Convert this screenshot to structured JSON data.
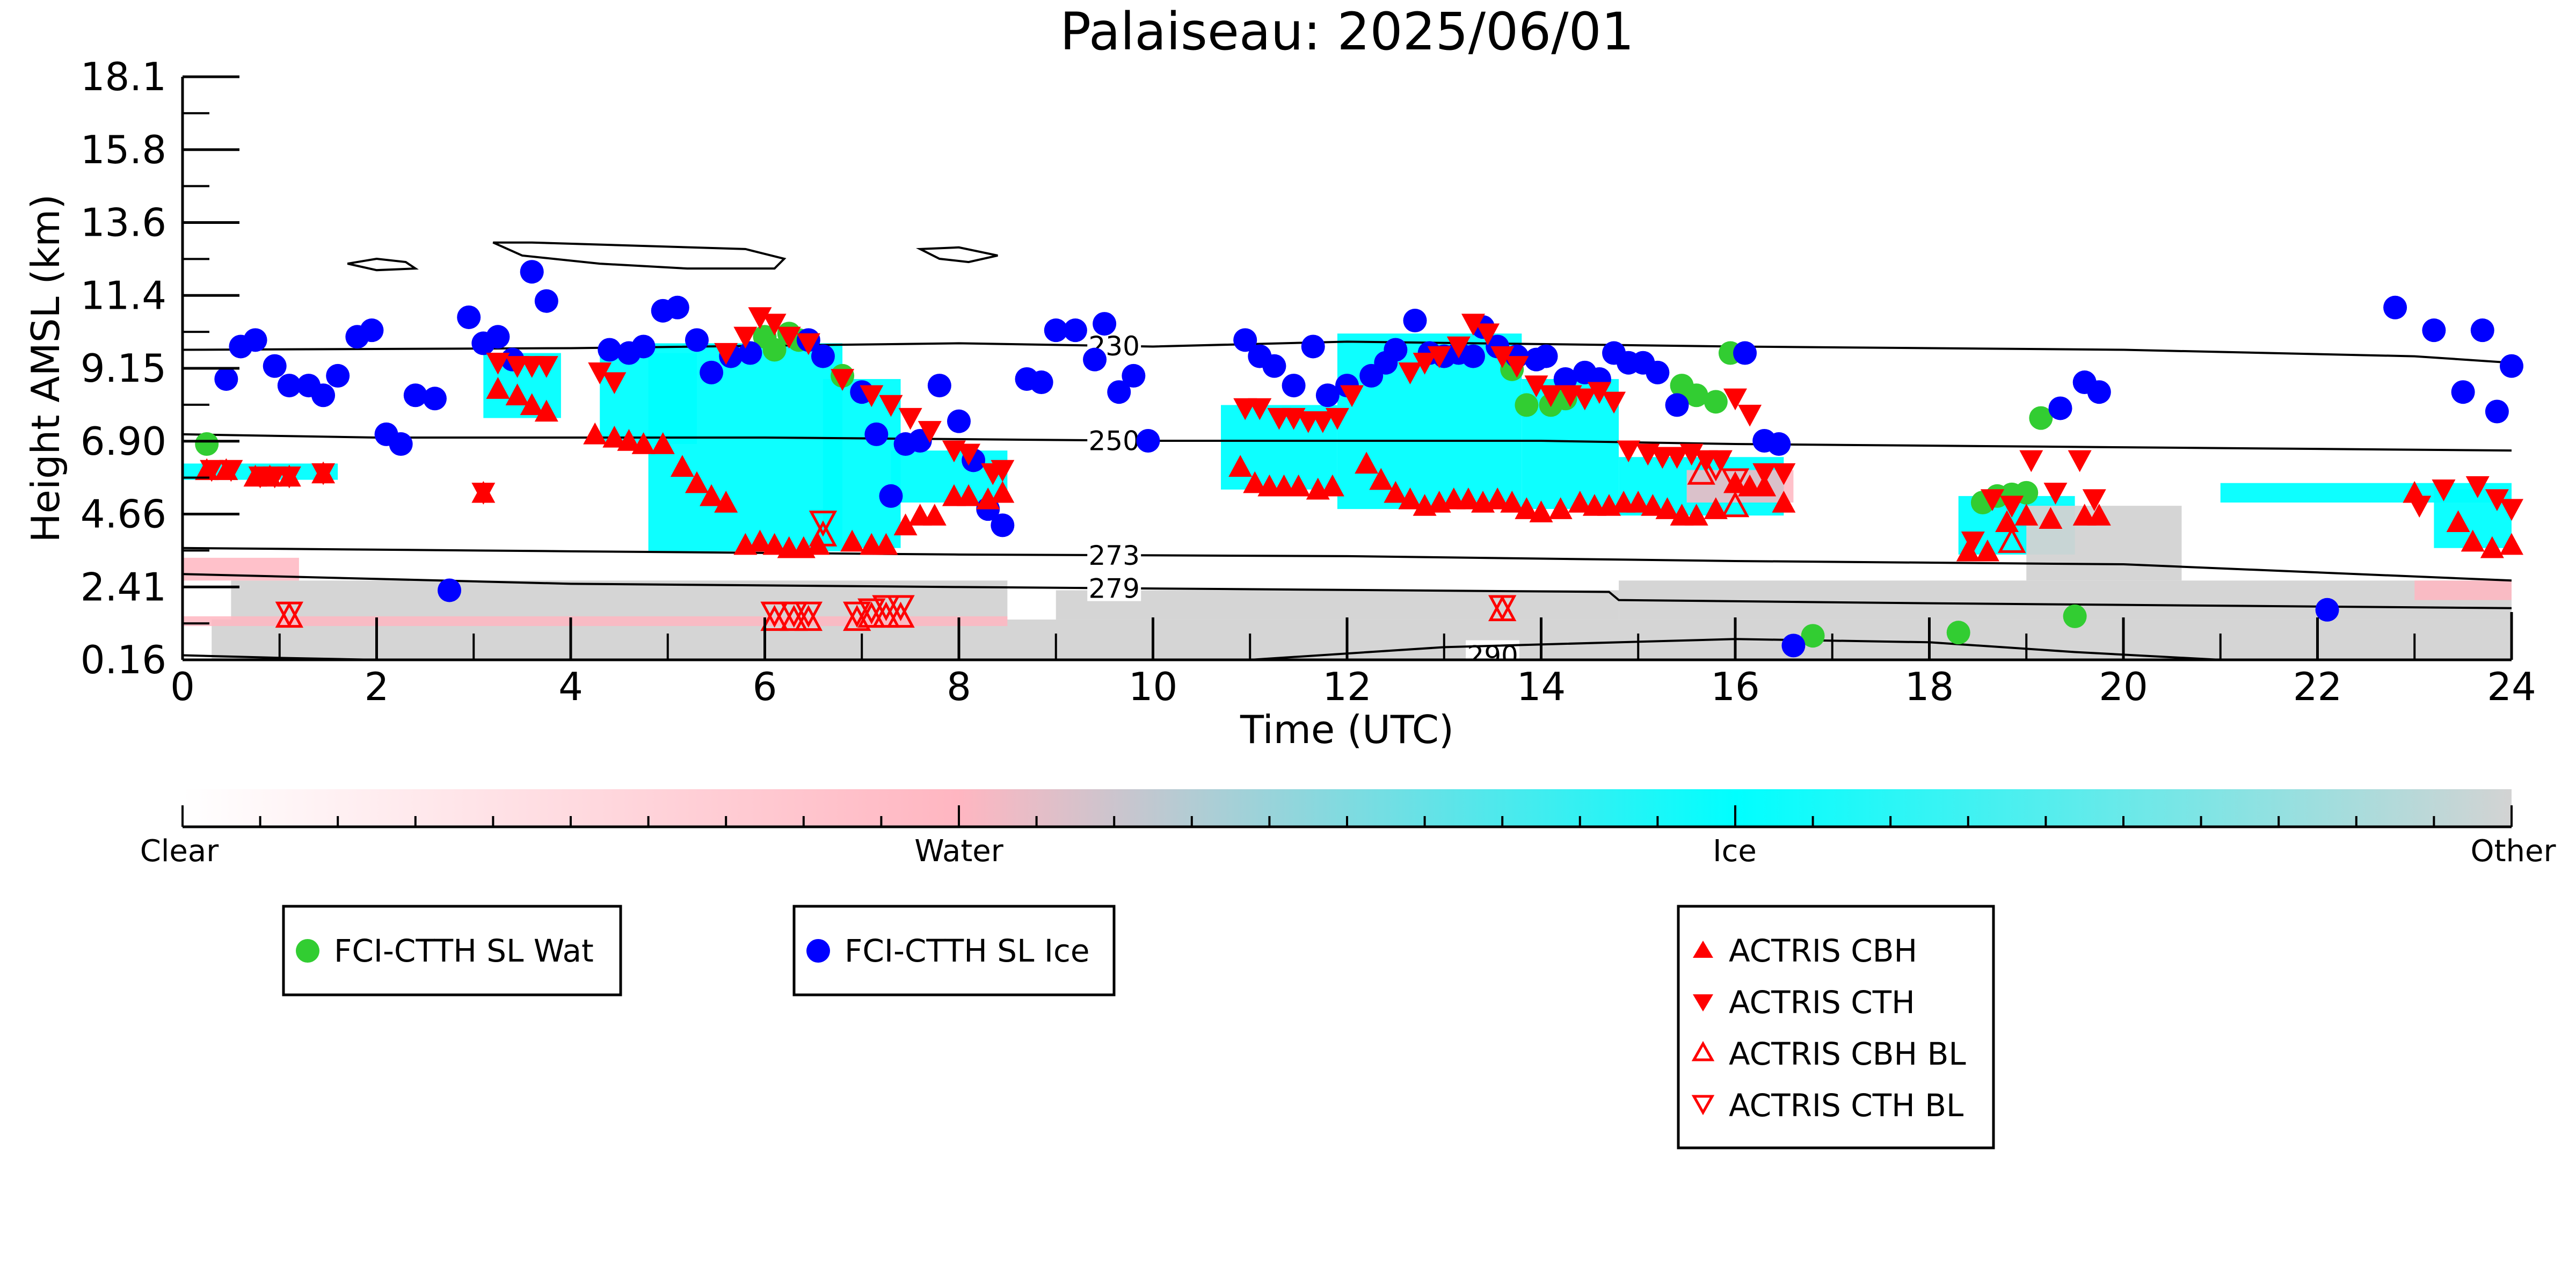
{
  "chart_data": {
    "type": "scatter",
    "title": "Palaiseau: 2025/06/01",
    "xlabel": "Time (UTC)",
    "ylabel": "Height AMSL (km)",
    "xlim": [
      0,
      24
    ],
    "ylim": [
      0.16,
      18.1
    ],
    "x_ticks": [
      "0",
      "2",
      "4",
      "6",
      "8",
      "10",
      "12",
      "14",
      "16",
      "18",
      "20",
      "22",
      "24"
    ],
    "y_ticks": [
      "0.16",
      "2.41",
      "4.66",
      "6.90",
      "9.15",
      "11.4",
      "13.6",
      "15.8",
      "18.1"
    ],
    "grid": false,
    "colors": {
      "clear": "#ffffff",
      "water": "#ffb6c1",
      "ice": "#00ffff",
      "other": "#d3d3d3",
      "sl_wat": "#32cd32",
      "sl_ice": "#0000ff",
      "actris": "#ff0000"
    },
    "colorbar": {
      "labels": [
        "Clear",
        "Water",
        "Ice",
        "Other"
      ]
    },
    "cloud_phase_regions": [
      {
        "phase": "ice",
        "x0": 3.1,
        "x1": 3.9,
        "y0": 7.6,
        "y1": 9.6
      },
      {
        "phase": "ice",
        "x0": 4.3,
        "x1": 5.3,
        "y0": 6.8,
        "y1": 9.6
      },
      {
        "phase": "ice",
        "x0": 4.8,
        "x1": 6.8,
        "y0": 3.5,
        "y1": 9.9
      },
      {
        "phase": "ice",
        "x0": 6.6,
        "x1": 7.4,
        "y0": 3.6,
        "y1": 8.8
      },
      {
        "phase": "ice",
        "x0": 7.3,
        "x1": 8.5,
        "y0": 5.0,
        "y1": 6.6
      },
      {
        "phase": "ice",
        "x0": 10.7,
        "x1": 11.9,
        "y0": 5.4,
        "y1": 8.0
      },
      {
        "phase": "ice",
        "x0": 11.9,
        "x1": 13.8,
        "y0": 4.8,
        "y1": 10.2
      },
      {
        "phase": "ice",
        "x0": 13.8,
        "x1": 14.8,
        "y0": 4.8,
        "y1": 8.8
      },
      {
        "phase": "ice",
        "x0": 14.8,
        "x1": 16.5,
        "y0": 4.6,
        "y1": 6.4
      },
      {
        "phase": "ice",
        "x0": 18.3,
        "x1": 19.5,
        "y0": 3.4,
        "y1": 5.2
      },
      {
        "phase": "ice",
        "x0": 21.0,
        "x1": 24.0,
        "y0": 5.0,
        "y1": 5.6
      },
      {
        "phase": "ice",
        "x0": 23.2,
        "x1": 24.0,
        "y0": 3.6,
        "y1": 5.4
      },
      {
        "phase": "ice",
        "x0": 0.0,
        "x1": 1.6,
        "y0": 5.7,
        "y1": 6.2
      },
      {
        "phase": "other",
        "x0": 0.3,
        "x1": 24.0,
        "y0": 0.16,
        "y1": 1.4
      },
      {
        "phase": "other",
        "x0": 0.5,
        "x1": 8.5,
        "y0": 1.4,
        "y1": 2.6
      },
      {
        "phase": "other",
        "x0": 9.0,
        "x1": 14.8,
        "y0": 1.4,
        "y1": 2.3
      },
      {
        "phase": "other",
        "x0": 14.8,
        "x1": 24.0,
        "y0": 1.4,
        "y1": 2.6
      },
      {
        "phase": "other",
        "x0": 19.0,
        "x1": 20.6,
        "y0": 2.6,
        "y1": 4.9
      },
      {
        "phase": "water",
        "x0": 0.0,
        "x1": 8.5,
        "y0": 1.2,
        "y1": 1.5
      },
      {
        "phase": "water",
        "x0": 0.0,
        "x1": 1.2,
        "y0": 2.6,
        "y1": 3.3
      },
      {
        "phase": "water",
        "x0": 15.5,
        "x1": 16.6,
        "y0": 5.0,
        "y1": 6.0
      },
      {
        "phase": "water",
        "x0": 23.0,
        "x1": 24.0,
        "y0": 2.0,
        "y1": 2.6
      }
    ],
    "contours": [
      {
        "label": "230",
        "label_x": 9.6,
        "points": [
          [
            0,
            9.7
          ],
          [
            4,
            9.75
          ],
          [
            8,
            9.9
          ],
          [
            10,
            9.8
          ],
          [
            12,
            9.95
          ],
          [
            16,
            9.8
          ],
          [
            20,
            9.7
          ],
          [
            23,
            9.5
          ],
          [
            24,
            9.3
          ]
        ]
      },
      {
        "label": "250",
        "label_x": 9.6,
        "points": [
          [
            0,
            7.1
          ],
          [
            2,
            7.0
          ],
          [
            6,
            7.0
          ],
          [
            10,
            6.9
          ],
          [
            14,
            6.9
          ],
          [
            16,
            6.8
          ],
          [
            20,
            6.7
          ],
          [
            24,
            6.6
          ]
        ]
      },
      {
        "label": "273",
        "label_x": 9.6,
        "points": [
          [
            0,
            3.6
          ],
          [
            4,
            3.5
          ],
          [
            8,
            3.4
          ],
          [
            12,
            3.35
          ],
          [
            16,
            3.2
          ],
          [
            20,
            3.1
          ],
          [
            24,
            2.6
          ]
        ]
      },
      {
        "label": "279",
        "label_x": 9.6,
        "points": [
          [
            0,
            2.8
          ],
          [
            4,
            2.5
          ],
          [
            8,
            2.4
          ],
          [
            14.7,
            2.25
          ],
          [
            14.8,
            2.0
          ],
          [
            18,
            1.9
          ],
          [
            24,
            1.75
          ]
        ]
      },
      {
        "label": "290",
        "label_x": 13.5,
        "points": [
          [
            0,
            0.3
          ],
          [
            1,
            0.22
          ],
          [
            2,
            0.16
          ]
        ]
      },
      {
        "label": "",
        "label_x": null,
        "points": [
          [
            11,
            0.16
          ],
          [
            13,
            0.55
          ],
          [
            16,
            0.8
          ],
          [
            18,
            0.7
          ],
          [
            19.5,
            0.4
          ],
          [
            21,
            0.16
          ]
        ]
      }
    ],
    "high_outlines": [
      [
        [
          1.7,
          12.35
        ],
        [
          2.0,
          12.5
        ],
        [
          2.3,
          12.4
        ],
        [
          2.4,
          12.2
        ],
        [
          2.0,
          12.15
        ],
        [
          1.7,
          12.35
        ]
      ],
      [
        [
          3.2,
          13.0
        ],
        [
          3.6,
          13.0
        ],
        [
          5.8,
          12.8
        ],
        [
          6.2,
          12.5
        ],
        [
          6.1,
          12.2
        ],
        [
          5.2,
          12.2
        ],
        [
          4.3,
          12.35
        ],
        [
          3.5,
          12.6
        ],
        [
          3.2,
          13.0
        ]
      ],
      [
        [
          7.6,
          12.8
        ],
        [
          8.0,
          12.85
        ],
        [
          8.4,
          12.6
        ],
        [
          8.1,
          12.4
        ],
        [
          7.8,
          12.5
        ],
        [
          7.6,
          12.8
        ]
      ]
    ],
    "series": [
      {
        "name": "FCI-CTTH SL Wat",
        "marker": "circle",
        "color": "#32cd32",
        "x": [
          0.25,
          6.0,
          6.1,
          6.25,
          6.35,
          6.8,
          13.7,
          13.85,
          14.1,
          14.25,
          15.45,
          15.6,
          15.8,
          15.95,
          16.8,
          18.3,
          18.55,
          18.7,
          18.85,
          19.0,
          19.15,
          19.5
        ],
        "y": [
          6.8,
          10.1,
          9.7,
          10.2,
          10.0,
          8.9,
          9.1,
          8.0,
          8.0,
          8.2,
          8.6,
          8.3,
          8.1,
          9.6,
          0.9,
          1.0,
          5.0,
          5.2,
          5.25,
          5.3,
          7.6,
          1.5
        ]
      },
      {
        "name": "FCI-CTTH SL Ice",
        "marker": "circle",
        "color": "#0000ff",
        "x": [
          0.45,
          0.6,
          0.75,
          0.95,
          1.1,
          1.3,
          1.45,
          1.6,
          1.8,
          1.95,
          2.1,
          2.25,
          2.4,
          2.6,
          2.75,
          2.95,
          3.1,
          3.25,
          3.4,
          3.6,
          3.75,
          4.4,
          4.6,
          4.75,
          4.95,
          5.1,
          5.3,
          5.45,
          5.65,
          5.85,
          6.45,
          6.6,
          7.0,
          7.15,
          7.3,
          7.45,
          7.6,
          7.8,
          8.0,
          8.15,
          8.3,
          8.45,
          8.7,
          8.85,
          9.0,
          9.2,
          9.4,
          9.5,
          9.65,
          9.8,
          9.95,
          10.95,
          11.1,
          11.25,
          11.45,
          11.65,
          11.8,
          12.0,
          12.25,
          12.4,
          12.5,
          12.7,
          12.85,
          13.0,
          13.15,
          13.3,
          13.4,
          13.55,
          13.75,
          13.95,
          14.05,
          14.25,
          14.45,
          14.6,
          14.75,
          14.9,
          15.05,
          15.2,
          15.4,
          16.1,
          16.3,
          16.45,
          16.6,
          19.35,
          19.6,
          19.75,
          22.1,
          22.8,
          23.2,
          23.5,
          23.7,
          23.85,
          24.0
        ],
        "y": [
          8.8,
          9.8,
          10.0,
          9.2,
          8.6,
          8.6,
          8.3,
          8.9,
          10.1,
          10.3,
          7.1,
          6.8,
          8.3,
          8.2,
          2.3,
          10.7,
          9.9,
          10.1,
          9.4,
          12.1,
          11.2,
          9.7,
          9.6,
          9.8,
          10.9,
          11.0,
          10.0,
          9.0,
          9.5,
          9.6,
          10.0,
          9.5,
          8.4,
          7.1,
          5.2,
          6.8,
          6.9,
          8.6,
          7.5,
          6.3,
          4.8,
          4.3,
          8.8,
          8.7,
          10.3,
          10.3,
          9.4,
          10.5,
          8.4,
          8.9,
          6.9,
          10.0,
          9.5,
          9.2,
          8.6,
          9.8,
          8.3,
          8.6,
          8.9,
          9.3,
          9.7,
          10.6,
          9.6,
          9.5,
          9.6,
          9.5,
          10.4,
          9.8,
          9.5,
          9.4,
          9.5,
          8.8,
          9.0,
          8.8,
          9.6,
          9.3,
          9.3,
          9.0,
          8.0,
          9.6,
          6.9,
          6.8,
          0.6,
          7.9,
          8.7,
          8.4,
          1.7,
          11.0,
          10.3,
          8.4,
          10.3,
          7.8,
          9.2
        ]
      },
      {
        "name": "ACTRIS CBH",
        "marker": "triangle-up",
        "color": "#ff0000",
        "x": [
          0.25,
          0.45,
          0.75,
          0.9,
          1.1,
          1.45,
          3.1,
          3.25,
          3.45,
          3.6,
          3.75,
          4.25,
          4.45,
          4.6,
          4.75,
          4.95,
          5.15,
          5.3,
          5.45,
          5.6,
          5.8,
          5.95,
          6.1,
          6.25,
          6.4,
          6.55,
          6.9,
          7.1,
          7.25,
          7.45,
          7.6,
          7.75,
          7.95,
          8.1,
          8.3,
          8.45,
          10.9,
          11.05,
          11.2,
          11.35,
          11.5,
          11.7,
          11.85,
          12.2,
          12.35,
          12.5,
          12.65,
          12.8,
          12.95,
          13.1,
          13.25,
          13.4,
          13.55,
          13.7,
          13.85,
          14.0,
          14.2,
          14.4,
          14.55,
          14.7,
          14.85,
          15.0,
          15.15,
          15.3,
          15.45,
          15.6,
          15.8,
          16.0,
          16.15,
          16.3,
          16.5,
          18.4,
          18.6,
          18.8,
          19.0,
          19.25,
          19.6,
          19.75,
          23.0,
          23.45,
          23.6,
          23.8,
          24.0
        ],
        "y": [
          6.0,
          6.0,
          5.8,
          5.8,
          5.8,
          5.9,
          5.3,
          8.5,
          8.3,
          8.0,
          7.8,
          7.1,
          7.0,
          6.9,
          6.8,
          6.8,
          6.1,
          5.6,
          5.2,
          5.0,
          3.7,
          3.8,
          3.7,
          3.6,
          3.6,
          3.7,
          3.8,
          3.7,
          3.7,
          4.3,
          4.6,
          4.6,
          5.2,
          5.2,
          5.1,
          5.3,
          6.1,
          5.6,
          5.5,
          5.5,
          5.5,
          5.4,
          5.5,
          6.2,
          5.7,
          5.3,
          5.1,
          4.9,
          5.0,
          5.1,
          5.1,
          5.0,
          5.1,
          5.0,
          4.8,
          4.7,
          4.8,
          5.0,
          4.9,
          4.9,
          5.0,
          5.0,
          4.9,
          4.8,
          4.6,
          4.6,
          4.8,
          5.6,
          5.5,
          5.5,
          5.0,
          3.5,
          3.5,
          4.4,
          4.6,
          4.5,
          4.6,
          4.6,
          5.3,
          4.4,
          3.8,
          3.6,
          3.7
        ],
        "bl": false
      },
      {
        "name": "ACTRIS CTH",
        "marker": "triangle-down",
        "color": "#ff0000",
        "x": [
          0.3,
          0.5,
          0.8,
          0.95,
          1.1,
          1.45,
          3.1,
          3.25,
          3.45,
          3.6,
          3.75,
          4.3,
          4.45,
          5.6,
          5.8,
          5.95,
          6.1,
          6.25,
          6.45,
          6.8,
          7.1,
          7.3,
          7.5,
          7.7,
          7.95,
          8.1,
          8.35,
          8.45,
          10.95,
          11.1,
          11.3,
          11.45,
          11.6,
          11.75,
          11.9,
          12.05,
          12.65,
          12.8,
          12.95,
          13.15,
          13.3,
          13.45,
          13.6,
          13.75,
          13.95,
          14.1,
          14.3,
          14.45,
          14.6,
          14.75,
          14.9,
          15.1,
          15.25,
          15.4,
          15.55,
          15.7,
          15.85,
          16.0,
          16.15,
          16.3,
          16.5,
          18.45,
          18.65,
          18.85,
          19.05,
          19.3,
          19.55,
          19.7,
          23.05,
          23.3,
          23.65,
          23.85,
          24.0
        ],
        "y": [
          6.0,
          6.0,
          5.8,
          5.8,
          5.8,
          5.9,
          5.3,
          9.3,
          9.2,
          9.2,
          9.2,
          9.0,
          8.7,
          9.6,
          10.1,
          10.7,
          10.5,
          10.1,
          9.9,
          8.8,
          8.3,
          8.0,
          7.6,
          7.2,
          6.6,
          6.5,
          5.9,
          6.0,
          7.9,
          7.9,
          7.6,
          7.6,
          7.5,
          7.5,
          7.6,
          8.3,
          9.0,
          9.3,
          9.5,
          9.8,
          10.5,
          10.2,
          9.5,
          9.2,
          8.6,
          8.3,
          8.3,
          8.2,
          8.4,
          8.1,
          6.6,
          6.5,
          6.4,
          6.4,
          6.5,
          6.3,
          6.3,
          8.2,
          7.7,
          5.9,
          5.9,
          3.8,
          5.1,
          4.9,
          6.3,
          5.3,
          6.3,
          5.1,
          4.9,
          5.4,
          5.5,
          5.1,
          4.8
        ],
        "bl": false
      },
      {
        "name": "ACTRIS CBH BL",
        "marker": "triangle-up-open",
        "color": "#ff0000",
        "x": [
          1.1,
          6.1,
          6.3,
          6.45,
          6.6,
          6.95,
          7.1,
          7.25,
          7.4,
          13.6,
          15.65,
          16.0,
          18.85
        ],
        "y": [
          1.5,
          1.4,
          1.4,
          1.4,
          4.0,
          1.4,
          1.5,
          1.5,
          1.5,
          1.7,
          5.9,
          4.9,
          3.8
        ],
        "bl": true
      },
      {
        "name": "ACTRIS CTH BL",
        "marker": "triangle-down-open",
        "color": "#ff0000",
        "x": [
          1.1,
          6.1,
          6.3,
          6.45,
          6.6,
          6.95,
          7.1,
          7.25,
          7.4,
          13.6,
          15.8,
          16.0
        ],
        "y": [
          1.6,
          1.6,
          1.6,
          1.6,
          4.4,
          1.6,
          1.7,
          1.8,
          1.8,
          1.8,
          6.1,
          5.7
        ],
        "bl": true
      }
    ],
    "legends": [
      {
        "position": "bottom-left",
        "entries": [
          "FCI-CTTH SL Wat"
        ]
      },
      {
        "position": "bottom-center-left",
        "entries": [
          "FCI-CTTH SL Ice"
        ]
      },
      {
        "position": "bottom-center-right",
        "entries": [
          "ACTRIS CBH",
          "ACTRIS CTH",
          "ACTRIS CBH BL",
          "ACTRIS CTH BL"
        ]
      }
    ]
  }
}
